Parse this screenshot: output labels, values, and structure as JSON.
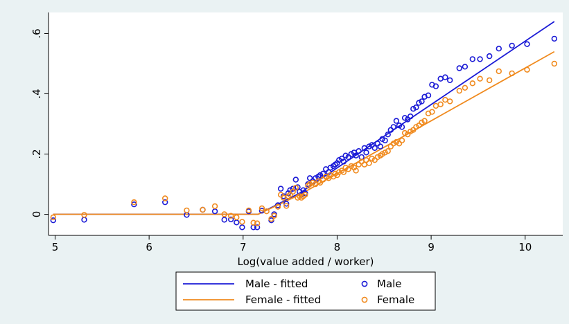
{
  "chart_data": {
    "type": "scatter",
    "title": "",
    "xlabel": "Log(value added / worker)",
    "ylabel": "",
    "xlim": [
      4.93,
      10.4
    ],
    "ylim": [
      -0.07,
      0.67
    ],
    "xticks": [
      5,
      6,
      7,
      8,
      9,
      10
    ],
    "xtick_labels": [
      "5",
      "6",
      "7",
      "8",
      "9",
      "10"
    ],
    "yticks": [
      0,
      0.2,
      0.4,
      0.6
    ],
    "ytick_labels": [
      "0",
      ".2",
      ".4",
      ".6"
    ],
    "grid": false,
    "legend_position": "bottom",
    "series": [
      {
        "name": "Male",
        "kind": "scatter",
        "color": "#1a1ad6",
        "points": [
          [
            4.98,
            -0.02
          ],
          [
            5.31,
            -0.018
          ],
          [
            5.84,
            0.033
          ],
          [
            6.17,
            0.04
          ],
          [
            6.4,
            -0.002
          ],
          [
            6.57,
            0.015
          ],
          [
            6.7,
            0.01
          ],
          [
            6.8,
            -0.018
          ],
          [
            6.87,
            -0.017
          ],
          [
            6.93,
            -0.027
          ],
          [
            6.99,
            -0.043
          ],
          [
            7.06,
            0.01
          ],
          [
            7.11,
            -0.043
          ],
          [
            7.15,
            -0.043
          ],
          [
            7.2,
            0.012
          ],
          [
            7.3,
            -0.02
          ],
          [
            7.33,
            0.0
          ],
          [
            7.37,
            0.03
          ],
          [
            7.4,
            0.085
          ],
          [
            7.43,
            0.06
          ],
          [
            7.46,
            0.035
          ],
          [
            7.48,
            0.07
          ],
          [
            7.5,
            0.08
          ],
          [
            7.53,
            0.085
          ],
          [
            7.56,
            0.115
          ],
          [
            7.58,
            0.09
          ],
          [
            7.6,
            0.075
          ],
          [
            7.62,
            0.065
          ],
          [
            7.64,
            0.08
          ],
          [
            7.66,
            0.07
          ],
          [
            7.69,
            0.1
          ],
          [
            7.71,
            0.12
          ],
          [
            7.74,
            0.11
          ],
          [
            7.77,
            0.12
          ],
          [
            7.8,
            0.125
          ],
          [
            7.82,
            0.13
          ],
          [
            7.85,
            0.135
          ],
          [
            7.88,
            0.15
          ],
          [
            7.91,
            0.14
          ],
          [
            7.93,
            0.155
          ],
          [
            7.96,
            0.16
          ],
          [
            7.98,
            0.165
          ],
          [
            8.0,
            0.17
          ],
          [
            8.02,
            0.18
          ],
          [
            8.05,
            0.185
          ],
          [
            8.07,
            0.175
          ],
          [
            8.09,
            0.195
          ],
          [
            8.12,
            0.19
          ],
          [
            8.15,
            0.2
          ],
          [
            8.18,
            0.205
          ],
          [
            8.2,
            0.195
          ],
          [
            8.23,
            0.21
          ],
          [
            8.26,
            0.19
          ],
          [
            8.29,
            0.22
          ],
          [
            8.31,
            0.205
          ],
          [
            8.34,
            0.225
          ],
          [
            8.37,
            0.23
          ],
          [
            8.4,
            0.22
          ],
          [
            8.43,
            0.235
          ],
          [
            8.46,
            0.225
          ],
          [
            8.48,
            0.25
          ],
          [
            8.51,
            0.245
          ],
          [
            8.54,
            0.265
          ],
          [
            8.57,
            0.28
          ],
          [
            8.6,
            0.29
          ],
          [
            8.63,
            0.31
          ],
          [
            8.66,
            0.295
          ],
          [
            8.69,
            0.29
          ],
          [
            8.72,
            0.32
          ],
          [
            8.75,
            0.315
          ],
          [
            8.78,
            0.325
          ],
          [
            8.81,
            0.35
          ],
          [
            8.84,
            0.355
          ],
          [
            8.87,
            0.37
          ],
          [
            8.9,
            0.375
          ],
          [
            8.93,
            0.39
          ],
          [
            8.97,
            0.395
          ],
          [
            9.01,
            0.43
          ],
          [
            9.05,
            0.425
          ],
          [
            9.1,
            0.45
          ],
          [
            9.15,
            0.455
          ],
          [
            9.2,
            0.445
          ],
          [
            9.3,
            0.485
          ],
          [
            9.36,
            0.49
          ],
          [
            9.44,
            0.515
          ],
          [
            9.52,
            0.515
          ],
          [
            9.62,
            0.525
          ],
          [
            9.72,
            0.55
          ],
          [
            9.86,
            0.56
          ],
          [
            10.02,
            0.565
          ],
          [
            10.31,
            0.583
          ]
        ]
      },
      {
        "name": "Female",
        "kind": "scatter",
        "color": "#f08a1e",
        "points": [
          [
            4.98,
            -0.01
          ],
          [
            5.31,
            -0.002
          ],
          [
            5.84,
            0.04
          ],
          [
            6.17,
            0.053
          ],
          [
            6.4,
            0.013
          ],
          [
            6.57,
            0.015
          ],
          [
            6.7,
            0.027
          ],
          [
            6.8,
            0.0
          ],
          [
            6.87,
            -0.005
          ],
          [
            6.93,
            -0.01
          ],
          [
            6.99,
            -0.025
          ],
          [
            7.06,
            0.013
          ],
          [
            7.11,
            -0.028
          ],
          [
            7.15,
            -0.03
          ],
          [
            7.2,
            0.02
          ],
          [
            7.25,
            0.01
          ],
          [
            7.3,
            -0.015
          ],
          [
            7.33,
            -0.005
          ],
          [
            7.37,
            0.025
          ],
          [
            7.4,
            0.065
          ],
          [
            7.43,
            0.055
          ],
          [
            7.46,
            0.028
          ],
          [
            7.48,
            0.06
          ],
          [
            7.5,
            0.065
          ],
          [
            7.53,
            0.075
          ],
          [
            7.56,
            0.088
          ],
          [
            7.58,
            0.055
          ],
          [
            7.6,
            0.06
          ],
          [
            7.62,
            0.055
          ],
          [
            7.64,
            0.06
          ],
          [
            7.66,
            0.065
          ],
          [
            7.69,
            0.095
          ],
          [
            7.71,
            0.1
          ],
          [
            7.74,
            0.105
          ],
          [
            7.77,
            0.1
          ],
          [
            7.8,
            0.11
          ],
          [
            7.82,
            0.105
          ],
          [
            7.85,
            0.115
          ],
          [
            7.88,
            0.125
          ],
          [
            7.91,
            0.12
          ],
          [
            7.93,
            0.13
          ],
          [
            7.96,
            0.125
          ],
          [
            7.98,
            0.135
          ],
          [
            8.0,
            0.13
          ],
          [
            8.02,
            0.14
          ],
          [
            8.05,
            0.145
          ],
          [
            8.07,
            0.14
          ],
          [
            8.09,
            0.155
          ],
          [
            8.12,
            0.15
          ],
          [
            8.15,
            0.16
          ],
          [
            8.18,
            0.155
          ],
          [
            8.2,
            0.145
          ],
          [
            8.23,
            0.165
          ],
          [
            8.26,
            0.175
          ],
          [
            8.29,
            0.165
          ],
          [
            8.31,
            0.18
          ],
          [
            8.34,
            0.17
          ],
          [
            8.37,
            0.185
          ],
          [
            8.4,
            0.18
          ],
          [
            8.43,
            0.19
          ],
          [
            8.46,
            0.195
          ],
          [
            8.48,
            0.2
          ],
          [
            8.51,
            0.205
          ],
          [
            8.54,
            0.21
          ],
          [
            8.57,
            0.225
          ],
          [
            8.6,
            0.235
          ],
          [
            8.63,
            0.24
          ],
          [
            8.66,
            0.235
          ],
          [
            8.69,
            0.245
          ],
          [
            8.72,
            0.27
          ],
          [
            8.75,
            0.265
          ],
          [
            8.78,
            0.275
          ],
          [
            8.81,
            0.28
          ],
          [
            8.84,
            0.29
          ],
          [
            8.87,
            0.295
          ],
          [
            8.9,
            0.305
          ],
          [
            8.93,
            0.31
          ],
          [
            8.97,
            0.335
          ],
          [
            9.01,
            0.34
          ],
          [
            9.05,
            0.36
          ],
          [
            9.1,
            0.365
          ],
          [
            9.15,
            0.38
          ],
          [
            9.2,
            0.375
          ],
          [
            9.3,
            0.41
          ],
          [
            9.36,
            0.42
          ],
          [
            9.44,
            0.435
          ],
          [
            9.52,
            0.45
          ],
          [
            9.62,
            0.445
          ],
          [
            9.72,
            0.475
          ],
          [
            9.86,
            0.468
          ],
          [
            10.02,
            0.48
          ],
          [
            10.31,
            0.5
          ]
        ]
      },
      {
        "name": "Male - fitted",
        "kind": "line",
        "color": "#1a1ad6",
        "points": [
          [
            4.98,
            0.0
          ],
          [
            7.16,
            0.0
          ],
          [
            7.6,
            0.07
          ],
          [
            10.31,
            0.64
          ]
        ]
      },
      {
        "name": "Female - fitted",
        "kind": "line",
        "color": "#f08a1e",
        "points": [
          [
            4.98,
            0.0
          ],
          [
            7.16,
            0.0
          ],
          [
            7.6,
            0.065
          ],
          [
            10.31,
            0.54
          ]
        ]
      }
    ]
  },
  "legend": {
    "items": [
      {
        "label": "Male - fitted",
        "symbol": "line",
        "color": "#1a1ad6"
      },
      {
        "label": "Male",
        "symbol": "circle",
        "color": "#1a1ad6"
      },
      {
        "label": "Female - fitted",
        "symbol": "line",
        "color": "#f08a1e"
      },
      {
        "label": "Female",
        "symbol": "circle",
        "color": "#f08a1e"
      }
    ]
  }
}
